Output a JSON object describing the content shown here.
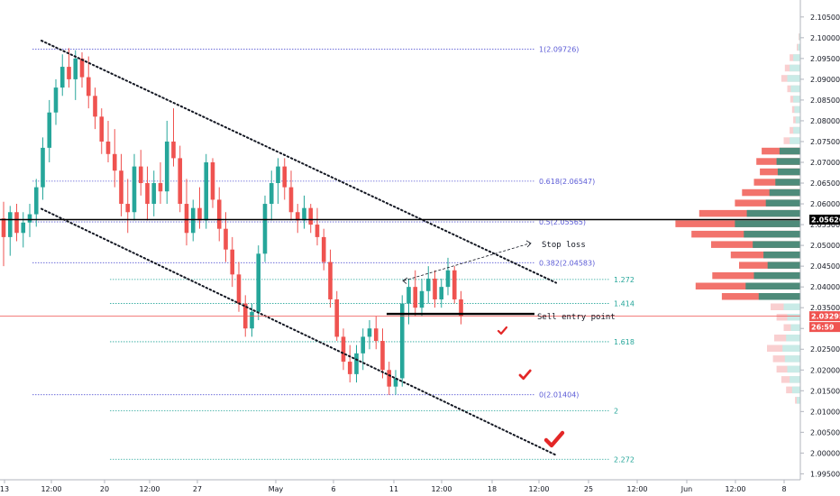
{
  "chart_data": {
    "type": "candlestick",
    "y_axis": {
      "min": 1.994,
      "max": 2.108,
      "ticks": [
        "2.10500",
        "2.10000",
        "2.09500",
        "2.09000",
        "2.08500",
        "2.08000",
        "2.07500",
        "2.07000",
        "2.06500",
        "2.06000",
        "2.05500",
        "2.05000",
        "2.04500",
        "2.04000",
        "2.03500",
        "2.03000",
        "2.02500",
        "2.02000",
        "2.01500",
        "2.01000",
        "2.00500",
        "2.00000",
        "1.99500"
      ]
    },
    "x_axis": {
      "ticks": [
        {
          "label": "13",
          "t": 0
        },
        {
          "label": "12:00",
          "t": 1
        },
        {
          "label": "20",
          "t": 2
        },
        {
          "label": "12:00",
          "t": 3
        },
        {
          "label": "27",
          "t": 4
        },
        {
          "label": "May",
          "t": 5
        },
        {
          "label": "6",
          "t": 6
        },
        {
          "label": "11",
          "t": 7
        },
        {
          "label": "12:00",
          "t": 8
        },
        {
          "label": "18",
          "t": 9
        },
        {
          "label": "12:00",
          "t": 10
        },
        {
          "label": "25",
          "t": 11
        },
        {
          "label": "12:00",
          "t": 12
        },
        {
          "label": "Jun",
          "t": 13
        },
        {
          "label": "12:00",
          "t": 14
        },
        {
          "label": "8",
          "t": 15
        }
      ]
    },
    "candle_series": [
      {
        "o": 2.0565,
        "h": 2.0605,
        "l": 2.045,
        "c": 2.052
      },
      {
        "o": 2.052,
        "h": 2.0595,
        "l": 2.0475,
        "c": 2.058
      },
      {
        "o": 2.058,
        "h": 2.06,
        "l": 2.051,
        "c": 2.053
      },
      {
        "o": 2.053,
        "h": 2.058,
        "l": 2.0495,
        "c": 2.0555
      },
      {
        "o": 2.0555,
        "h": 2.06,
        "l": 2.052,
        "c": 2.0575
      },
      {
        "o": 2.0575,
        "h": 2.066,
        "l": 2.0545,
        "c": 2.064
      },
      {
        "o": 2.064,
        "h": 2.076,
        "l": 2.061,
        "c": 2.0735
      },
      {
        "o": 2.0735,
        "h": 2.085,
        "l": 2.07,
        "c": 2.082
      },
      {
        "o": 2.082,
        "h": 2.09,
        "l": 2.079,
        "c": 2.088
      },
      {
        "o": 2.088,
        "h": 2.096,
        "l": 2.086,
        "c": 2.093
      },
      {
        "o": 2.093,
        "h": 2.0975,
        "l": 2.088,
        "c": 2.09
      },
      {
        "o": 2.09,
        "h": 2.097,
        "l": 2.085,
        "c": 2.095
      },
      {
        "o": 2.095,
        "h": 2.0965,
        "l": 2.088,
        "c": 2.0905
      },
      {
        "o": 2.0905,
        "h": 2.0955,
        "l": 2.083,
        "c": 2.086
      },
      {
        "o": 2.086,
        "h": 2.088,
        "l": 2.078,
        "c": 2.081
      },
      {
        "o": 2.081,
        "h": 2.083,
        "l": 2.072,
        "c": 2.075
      },
      {
        "o": 2.075,
        "h": 2.08,
        "l": 2.07,
        "c": 2.072
      },
      {
        "o": 2.072,
        "h": 2.078,
        "l": 2.064,
        "c": 2.068
      },
      {
        "o": 2.068,
        "h": 2.072,
        "l": 2.057,
        "c": 2.06
      },
      {
        "o": 2.06,
        "h": 2.066,
        "l": 2.053,
        "c": 2.058
      },
      {
        "o": 2.058,
        "h": 2.072,
        "l": 2.056,
        "c": 2.069
      },
      {
        "o": 2.069,
        "h": 2.073,
        "l": 2.062,
        "c": 2.065
      },
      {
        "o": 2.065,
        "h": 2.069,
        "l": 2.056,
        "c": 2.06
      },
      {
        "o": 2.06,
        "h": 2.068,
        "l": 2.057,
        "c": 2.065
      },
      {
        "o": 2.065,
        "h": 2.07,
        "l": 2.06,
        "c": 2.063
      },
      {
        "o": 2.063,
        "h": 2.08,
        "l": 2.06,
        "c": 2.075
      },
      {
        "o": 2.075,
        "h": 2.083,
        "l": 2.069,
        "c": 2.071
      },
      {
        "o": 2.071,
        "h": 2.074,
        "l": 2.058,
        "c": 2.06
      },
      {
        "o": 2.06,
        "h": 2.066,
        "l": 2.05,
        "c": 2.053
      },
      {
        "o": 2.053,
        "h": 2.061,
        "l": 2.051,
        "c": 2.059
      },
      {
        "o": 2.059,
        "h": 2.064,
        "l": 2.054,
        "c": 2.056
      },
      {
        "o": 2.056,
        "h": 2.072,
        "l": 2.054,
        "c": 2.07
      },
      {
        "o": 2.07,
        "h": 2.071,
        "l": 2.059,
        "c": 2.061
      },
      {
        "o": 2.061,
        "h": 2.064,
        "l": 2.051,
        "c": 2.054
      },
      {
        "o": 2.054,
        "h": 2.058,
        "l": 2.046,
        "c": 2.049
      },
      {
        "o": 2.049,
        "h": 2.052,
        "l": 2.04,
        "c": 2.043
      },
      {
        "o": 2.043,
        "h": 2.046,
        "l": 2.034,
        "c": 2.036
      },
      {
        "o": 2.036,
        "h": 2.038,
        "l": 2.028,
        "c": 2.03
      },
      {
        "o": 2.03,
        "h": 2.036,
        "l": 2.028,
        "c": 2.034
      },
      {
        "o": 2.034,
        "h": 2.05,
        "l": 2.032,
        "c": 2.048
      },
      {
        "o": 2.048,
        "h": 2.062,
        "l": 2.046,
        "c": 2.06
      },
      {
        "o": 2.06,
        "h": 2.068,
        "l": 2.056,
        "c": 2.065
      },
      {
        "o": 2.065,
        "h": 2.071,
        "l": 2.06,
        "c": 2.069
      },
      {
        "o": 2.069,
        "h": 2.071,
        "l": 2.061,
        "c": 2.064
      },
      {
        "o": 2.064,
        "h": 2.068,
        "l": 2.056,
        "c": 2.058
      },
      {
        "o": 2.058,
        "h": 2.06,
        "l": 2.053,
        "c": 2.056
      },
      {
        "o": 2.056,
        "h": 2.062,
        "l": 2.054,
        "c": 2.059
      },
      {
        "o": 2.059,
        "h": 2.06,
        "l": 2.053,
        "c": 2.055
      },
      {
        "o": 2.055,
        "h": 2.059,
        "l": 2.05,
        "c": 2.052
      },
      {
        "o": 2.052,
        "h": 2.054,
        "l": 2.044,
        "c": 2.046
      },
      {
        "o": 2.046,
        "h": 2.049,
        "l": 2.035,
        "c": 2.037
      },
      {
        "o": 2.037,
        "h": 2.039,
        "l": 2.027,
        "c": 2.028
      },
      {
        "o": 2.028,
        "h": 2.03,
        "l": 2.02,
        "c": 2.022
      },
      {
        "o": 2.022,
        "h": 2.026,
        "l": 2.017,
        "c": 2.019
      },
      {
        "o": 2.019,
        "h": 2.026,
        "l": 2.017,
        "c": 2.024
      },
      {
        "o": 2.024,
        "h": 2.03,
        "l": 2.02,
        "c": 2.028
      },
      {
        "o": 2.028,
        "h": 2.032,
        "l": 2.025,
        "c": 2.03
      },
      {
        "o": 2.03,
        "h": 2.033,
        "l": 2.025,
        "c": 2.027
      },
      {
        "o": 2.027,
        "h": 2.03,
        "l": 2.018,
        "c": 2.02
      },
      {
        "o": 2.02,
        "h": 2.022,
        "l": 2.014,
        "c": 2.016
      },
      {
        "o": 2.016,
        "h": 2.02,
        "l": 2.014,
        "c": 2.018
      },
      {
        "o": 2.018,
        "h": 2.038,
        "l": 2.016,
        "c": 2.036
      },
      {
        "o": 2.036,
        "h": 2.042,
        "l": 2.031,
        "c": 2.04
      },
      {
        "o": 2.04,
        "h": 2.044,
        "l": 2.033,
        "c": 2.035
      },
      {
        "o": 2.035,
        "h": 2.042,
        "l": 2.033,
        "c": 2.039
      },
      {
        "o": 2.039,
        "h": 2.045,
        "l": 2.036,
        "c": 2.042
      },
      {
        "o": 2.042,
        "h": 2.044,
        "l": 2.035,
        "c": 2.037
      },
      {
        "o": 2.037,
        "h": 2.042,
        "l": 2.035,
        "c": 2.04
      },
      {
        "o": 2.04,
        "h": 2.047,
        "l": 2.038,
        "c": 2.044
      },
      {
        "o": 2.044,
        "h": 2.045,
        "l": 2.036,
        "c": 2.037
      },
      {
        "o": 2.037,
        "h": 2.039,
        "l": 2.031,
        "c": 2.033
      }
    ],
    "fib_levels": [
      {
        "label": "1(2.09726)",
        "price": 2.09726,
        "color": "#5b5bd6"
      },
      {
        "label": "0.618(2.06547)",
        "price": 2.06547,
        "color": "#5b5bd6"
      },
      {
        "label": "0.5(2.05565)",
        "price": 2.05565,
        "color": "#5b5bd6"
      },
      {
        "label": "0.382(2.04583)",
        "price": 2.04583,
        "color": "#5b5bd6"
      },
      {
        "label": "0(2.01404)",
        "price": 2.01404,
        "color": "#5b5bd6"
      }
    ],
    "ext_levels": [
      {
        "label": "1.272",
        "price": 2.0418,
        "color": "#26a69a"
      },
      {
        "label": "1.414",
        "price": 2.036,
        "color": "#26a69a"
      },
      {
        "label": "1.618",
        "price": 2.0268,
        "color": "#26a69a"
      },
      {
        "label": "2",
        "price": 2.0102,
        "color": "#26a69a"
      },
      {
        "label": "2.272",
        "price": 1.9985,
        "color": "#26a69a"
      }
    ],
    "horizontal_line_price": 2.0562,
    "current_price": 2.03295,
    "sell_entry_price": 2.0335,
    "annotations": {
      "stop_loss": "Stop loss",
      "sell_entry": "Sell entry point"
    },
    "price_tags": {
      "line_price": "2.05620",
      "current_price": "2.03295",
      "countdown": "26:59"
    },
    "volume_profile": [
      {
        "price": 2.1,
        "up": 2,
        "down": 1
      },
      {
        "price": 2.0975,
        "up": 4,
        "down": 2
      },
      {
        "price": 2.095,
        "up": 12,
        "down": 6
      },
      {
        "price": 2.0925,
        "up": 18,
        "down": 8
      },
      {
        "price": 2.09,
        "up": 22,
        "down": 10
      },
      {
        "price": 2.0875,
        "up": 16,
        "down": 6
      },
      {
        "price": 2.085,
        "up": 12,
        "down": 5
      },
      {
        "price": 2.0825,
        "up": 10,
        "down": 4
      },
      {
        "price": 2.08,
        "up": 8,
        "down": 4
      },
      {
        "price": 2.0775,
        "up": 12,
        "down": 6
      },
      {
        "price": 2.075,
        "up": 18,
        "down": 10
      },
      {
        "price": 2.0725,
        "up": 35,
        "down": 30
      },
      {
        "price": 2.07,
        "up": 40,
        "down": 34
      },
      {
        "price": 2.0675,
        "up": 38,
        "down": 30
      },
      {
        "price": 2.065,
        "up": 42,
        "down": 36
      },
      {
        "price": 2.0625,
        "up": 52,
        "down": 46
      },
      {
        "price": 2.06,
        "up": 58,
        "down": 52
      },
      {
        "price": 2.0575,
        "up": 90,
        "down": 80
      },
      {
        "price": 2.055,
        "up": 110,
        "down": 100
      },
      {
        "price": 2.0525,
        "up": 95,
        "down": 88
      },
      {
        "price": 2.05,
        "up": 80,
        "down": 70
      },
      {
        "price": 2.0475,
        "up": 62,
        "down": 55
      },
      {
        "price": 2.045,
        "up": 55,
        "down": 48
      },
      {
        "price": 2.0425,
        "up": 78,
        "down": 70
      },
      {
        "price": 2.04,
        "up": 92,
        "down": 84
      },
      {
        "price": 2.0375,
        "up": 70,
        "down": 62
      },
      {
        "price": 2.035,
        "up": 28,
        "down": 22
      },
      {
        "price": 2.0325,
        "up": 22,
        "down": 18
      },
      {
        "price": 2.03,
        "up": 16,
        "down": 12
      },
      {
        "price": 2.0275,
        "up": 24,
        "down": 20
      },
      {
        "price": 2.025,
        "up": 30,
        "down": 26
      },
      {
        "price": 2.0225,
        "up": 26,
        "down": 20
      },
      {
        "price": 2.02,
        "up": 22,
        "down": 18
      },
      {
        "price": 2.0175,
        "up": 18,
        "down": 14
      },
      {
        "price": 2.015,
        "up": 14,
        "down": 10
      },
      {
        "price": 2.0125,
        "up": 6,
        "down": 3
      }
    ],
    "value_area": {
      "high": 2.0735,
      "low": 2.036
    },
    "colors": {
      "up": "#26a69a",
      "down": "#ef5350",
      "vp_in_up": "#4e8b7a",
      "vp_in_down": "#f2736c",
      "vp_out_up": "#c9ebe7",
      "vp_out_down": "#f9cfd0",
      "channel": "#131722",
      "checkmark": "#e32727",
      "current_line": "#ef5350"
    }
  }
}
